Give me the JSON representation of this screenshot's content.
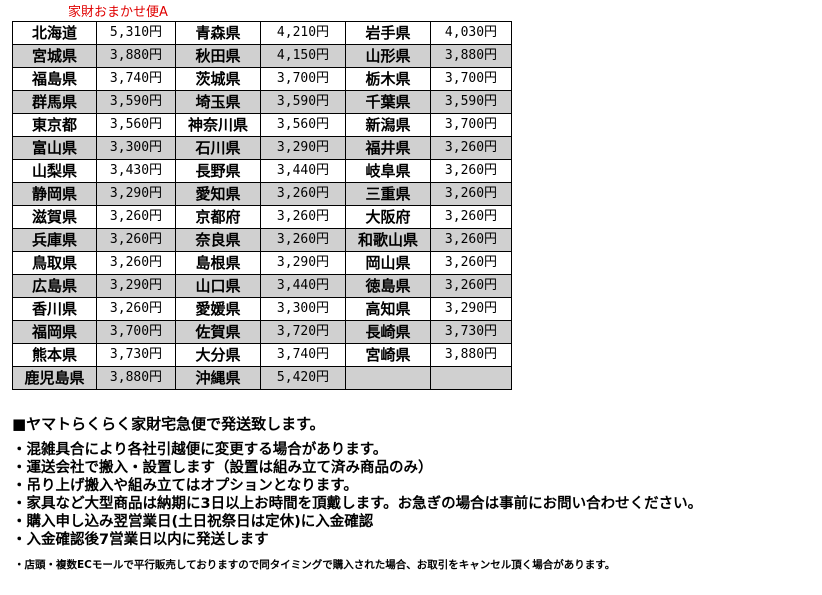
{
  "caption": "家財おまかせ便A",
  "rows": [
    [
      [
        "北海道",
        "5,310円"
      ],
      [
        "青森県",
        "4,210円"
      ],
      [
        "岩手県",
        "4,030円"
      ]
    ],
    [
      [
        "宮城県",
        "3,880円"
      ],
      [
        "秋田県",
        "4,150円"
      ],
      [
        "山形県",
        "3,880円"
      ]
    ],
    [
      [
        "福島県",
        "3,740円"
      ],
      [
        "茨城県",
        "3,700円"
      ],
      [
        "栃木県",
        "3,700円"
      ]
    ],
    [
      [
        "群馬県",
        "3,590円"
      ],
      [
        "埼玉県",
        "3,590円"
      ],
      [
        "千葉県",
        "3,590円"
      ]
    ],
    [
      [
        "東京都",
        "3,560円"
      ],
      [
        "神奈川県",
        "3,560円"
      ],
      [
        "新潟県",
        "3,700円"
      ]
    ],
    [
      [
        "富山県",
        "3,300円"
      ],
      [
        "石川県",
        "3,290円"
      ],
      [
        "福井県",
        "3,260円"
      ]
    ],
    [
      [
        "山梨県",
        "3,430円"
      ],
      [
        "長野県",
        "3,440円"
      ],
      [
        "岐阜県",
        "3,260円"
      ]
    ],
    [
      [
        "静岡県",
        "3,290円"
      ],
      [
        "愛知県",
        "3,260円"
      ],
      [
        "三重県",
        "3,260円"
      ]
    ],
    [
      [
        "滋賀県",
        "3,260円"
      ],
      [
        "京都府",
        "3,260円"
      ],
      [
        "大阪府",
        "3,260円"
      ]
    ],
    [
      [
        "兵庫県",
        "3,260円"
      ],
      [
        "奈良県",
        "3,260円"
      ],
      [
        "和歌山県",
        "3,260円"
      ]
    ],
    [
      [
        "鳥取県",
        "3,260円"
      ],
      [
        "島根県",
        "3,290円"
      ],
      [
        "岡山県",
        "3,260円"
      ]
    ],
    [
      [
        "広島県",
        "3,290円"
      ],
      [
        "山口県",
        "3,440円"
      ],
      [
        "徳島県",
        "3,260円"
      ]
    ],
    [
      [
        "香川県",
        "3,260円"
      ],
      [
        "愛媛県",
        "3,300円"
      ],
      [
        "高知県",
        "3,290円"
      ]
    ],
    [
      [
        "福岡県",
        "3,700円"
      ],
      [
        "佐賀県",
        "3,720円"
      ],
      [
        "長崎県",
        "3,730円"
      ]
    ],
    [
      [
        "熊本県",
        "3,730円"
      ],
      [
        "大分県",
        "3,740円"
      ],
      [
        "宮崎県",
        "3,880円"
      ]
    ],
    [
      [
        "鹿児島県",
        "3,880円"
      ],
      [
        "沖縄県",
        "5,420円"
      ],
      [
        "",
        ""
      ]
    ]
  ],
  "colors": {
    "caption": "#e00000",
    "shade": "#d0d0d0"
  },
  "notes": {
    "heading": "■ヤマトらくらく家財宅急便で発送致します。",
    "bullets": [
      "・混雑具合により各社引越便に変更する場合があります。",
      "・運送会社で搬入・設置します（設置は組み立て済み商品のみ）",
      "・吊り上げ搬入や組み立てはオプションとなります。",
      "・家具など大型商品は納期に3日以上お時間を頂戴します。お急ぎの場合は事前にお問い合わせください。",
      "・購入申し込み翌営業日(土日祝祭日は定休)に入金確認",
      "・入金確認後7営業日以内に発送します"
    ],
    "footer": "・店頭・複数ECモールで平行販売しておりますので同タイミングで購入された場合、お取引をキャンセル頂く場合があります。"
  }
}
